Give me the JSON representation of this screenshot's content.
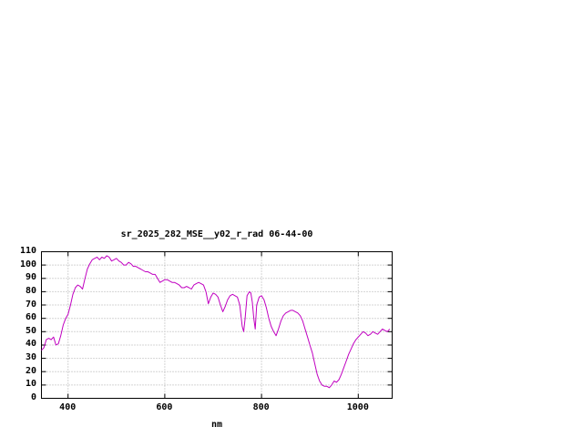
{
  "chart_data": {
    "type": "line",
    "title": "sr_2025_282_MSE__y02_r_rad 06-44-00",
    "xlabel": "nm",
    "ylabel": "",
    "xlim": [
      345,
      1070
    ],
    "ylim": [
      0,
      110
    ],
    "xticks": [
      400,
      600,
      800,
      1000
    ],
    "yticks": [
      0,
      10,
      20,
      30,
      40,
      50,
      60,
      70,
      80,
      90,
      100,
      110
    ],
    "grid": true,
    "grid_color": "#aaaaaa",
    "line_color": "#C000C0",
    "legend": "none",
    "series": [
      {
        "x": [
          345,
          350,
          355,
          360,
          365,
          370,
          375,
          380,
          385,
          390,
          395,
          400,
          405,
          410,
          415,
          420,
          425,
          430,
          435,
          440,
          445,
          450,
          455,
          460,
          465,
          470,
          475,
          480,
          485,
          490,
          495,
          500,
          505,
          510,
          515,
          520,
          525,
          530,
          535,
          540,
          545,
          550,
          555,
          560,
          565,
          570,
          575,
          580,
          585,
          590,
          595,
          600,
          605,
          610,
          615,
          620,
          625,
          630,
          635,
          640,
          645,
          650,
          655,
          660,
          665,
          670,
          675,
          680,
          685,
          690,
          695,
          700,
          705,
          710,
          715,
          720,
          725,
          730,
          735,
          740,
          745,
          750,
          755,
          760,
          763,
          766,
          770,
          775,
          778,
          781,
          784,
          787,
          790,
          795,
          800,
          805,
          810,
          815,
          820,
          825,
          830,
          835,
          840,
          845,
          850,
          855,
          860,
          865,
          870,
          875,
          880,
          885,
          890,
          895,
          900,
          905,
          910,
          915,
          920,
          925,
          930,
          935,
          940,
          945,
          950,
          955,
          960,
          965,
          970,
          975,
          980,
          985,
          990,
          995,
          1000,
          1005,
          1010,
          1015,
          1020,
          1025,
          1030,
          1035,
          1040,
          1045,
          1050,
          1055,
          1060,
          1065
        ],
        "y": [
          36,
          38,
          44,
          45,
          44,
          46,
          40,
          41,
          47,
          55,
          60,
          63,
          70,
          78,
          83,
          85,
          84,
          82,
          90,
          97,
          101,
          104,
          105,
          106,
          104,
          106,
          105,
          107,
          106,
          103,
          104,
          105,
          103,
          102,
          100,
          100,
          102,
          101,
          99,
          99,
          98,
          97,
          96,
          95,
          95,
          94,
          93,
          93,
          90,
          87,
          88,
          89,
          89,
          88,
          87,
          87,
          86,
          85,
          83,
          83,
          84,
          83,
          82,
          85,
          86,
          87,
          86,
          85,
          80,
          71,
          76,
          79,
          78,
          76,
          70,
          65,
          69,
          74,
          77,
          78,
          77,
          76,
          70,
          54,
          50,
          60,
          77,
          80,
          79,
          72,
          60,
          52,
          70,
          76,
          77,
          74,
          68,
          60,
          54,
          50,
          47,
          52,
          58,
          62,
          64,
          65,
          66,
          66,
          65,
          64,
          62,
          58,
          52,
          46,
          40,
          34,
          26,
          18,
          13,
          10,
          9,
          9,
          8,
          10,
          13,
          12,
          14,
          18,
          23,
          28,
          33,
          37,
          41,
          44,
          46,
          48,
          50,
          49,
          47,
          48,
          50,
          49,
          48,
          50,
          52,
          51,
          50,
          52
        ]
      }
    ]
  }
}
